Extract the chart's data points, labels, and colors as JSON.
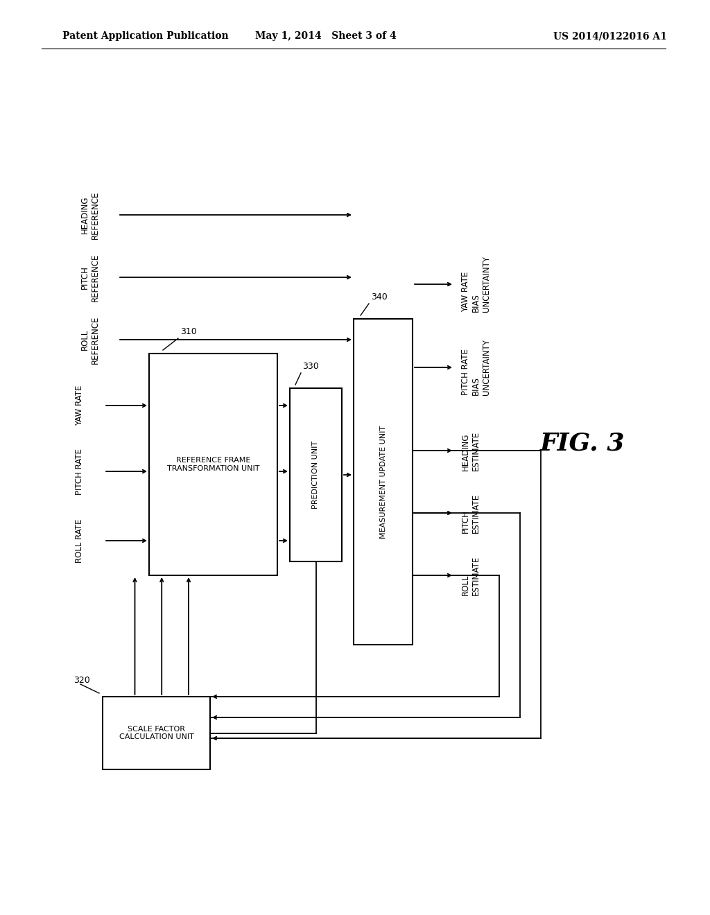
{
  "bg_color": "#ffffff",
  "header_left": "Patent Application Publication",
  "header_mid": "May 1, 2014   Sheet 3 of 4",
  "header_right": "US 2014/0122016 A1",
  "fig_label": "FIG. 3"
}
